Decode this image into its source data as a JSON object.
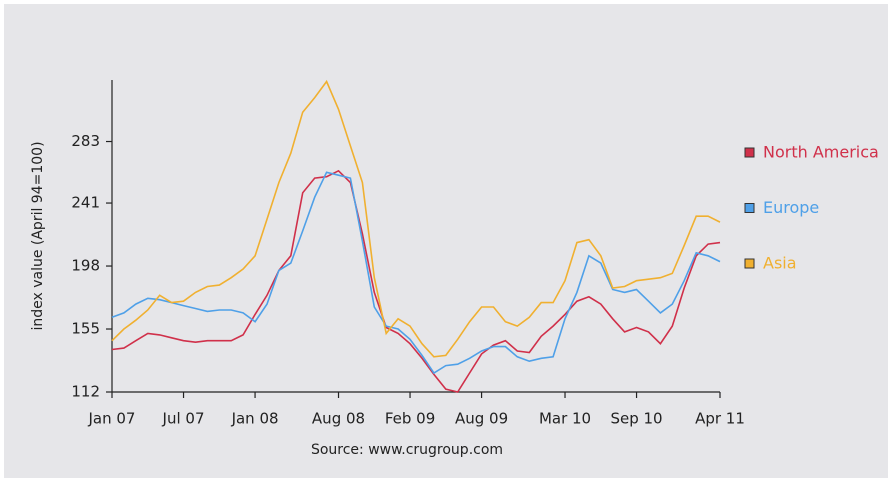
{
  "chart_data": {
    "type": "line",
    "y_label": "index value (April 94=100)",
    "source": "Source: www.crugroup.com",
    "categories": [
      "Jan 07",
      null,
      null,
      null,
      null,
      null,
      "Jul 07",
      null,
      null,
      null,
      null,
      null,
      "Jan 08",
      null,
      null,
      null,
      null,
      null,
      null,
      "Aug 08",
      null,
      null,
      null,
      null,
      null,
      "Feb 09",
      null,
      null,
      null,
      null,
      null,
      "Aug 09",
      null,
      null,
      null,
      null,
      null,
      null,
      "Mar 10",
      null,
      null,
      null,
      null,
      null,
      "Sep 10",
      null,
      null,
      null,
      null,
      null,
      null,
      "Apr 11"
    ],
    "ylim": [
      112,
      325
    ],
    "yticks": [
      112,
      155,
      198,
      241,
      283
    ],
    "series": [
      {
        "name": "North America",
        "color": "#d0304a",
        "values": [
          141,
          142,
          147,
          152,
          151,
          149,
          147,
          146,
          147,
          147,
          147,
          151,
          165,
          178,
          195,
          205,
          248,
          258,
          259,
          263,
          255,
          220,
          180,
          156,
          152,
          145,
          135,
          124,
          114,
          112,
          125,
          138,
          144,
          147,
          140,
          139,
          150,
          157,
          165,
          174,
          177,
          172,
          162,
          153,
          156,
          153,
          145,
          157,
          183,
          205,
          213,
          214
        ]
      },
      {
        "name": "Europe",
        "color": "#4fa0e8",
        "values": [
          163,
          166,
          172,
          176,
          175,
          173,
          171,
          169,
          167,
          168,
          168,
          166,
          160,
          172,
          195,
          200,
          222,
          245,
          262,
          260,
          258,
          215,
          170,
          157,
          155,
          148,
          137,
          125,
          130,
          131,
          135,
          140,
          143,
          143,
          136,
          133,
          135,
          136,
          162,
          180,
          205,
          200,
          182,
          180,
          182,
          174,
          166,
          172,
          188,
          207,
          205,
          201
        ]
      },
      {
        "name": "Asia",
        "color": "#f0b030",
        "values": [
          147,
          155,
          161,
          168,
          178,
          173,
          174,
          180,
          184,
          185,
          190,
          196,
          205,
          230,
          255,
          275,
          303,
          313,
          324,
          305,
          280,
          255,
          190,
          152,
          162,
          157,
          145,
          136,
          137,
          148,
          160,
          170,
          170,
          160,
          157,
          163,
          173,
          173,
          188,
          214,
          216,
          205,
          183,
          184,
          188,
          189,
          190,
          193,
          212,
          232,
          232,
          228
        ]
      }
    ]
  }
}
